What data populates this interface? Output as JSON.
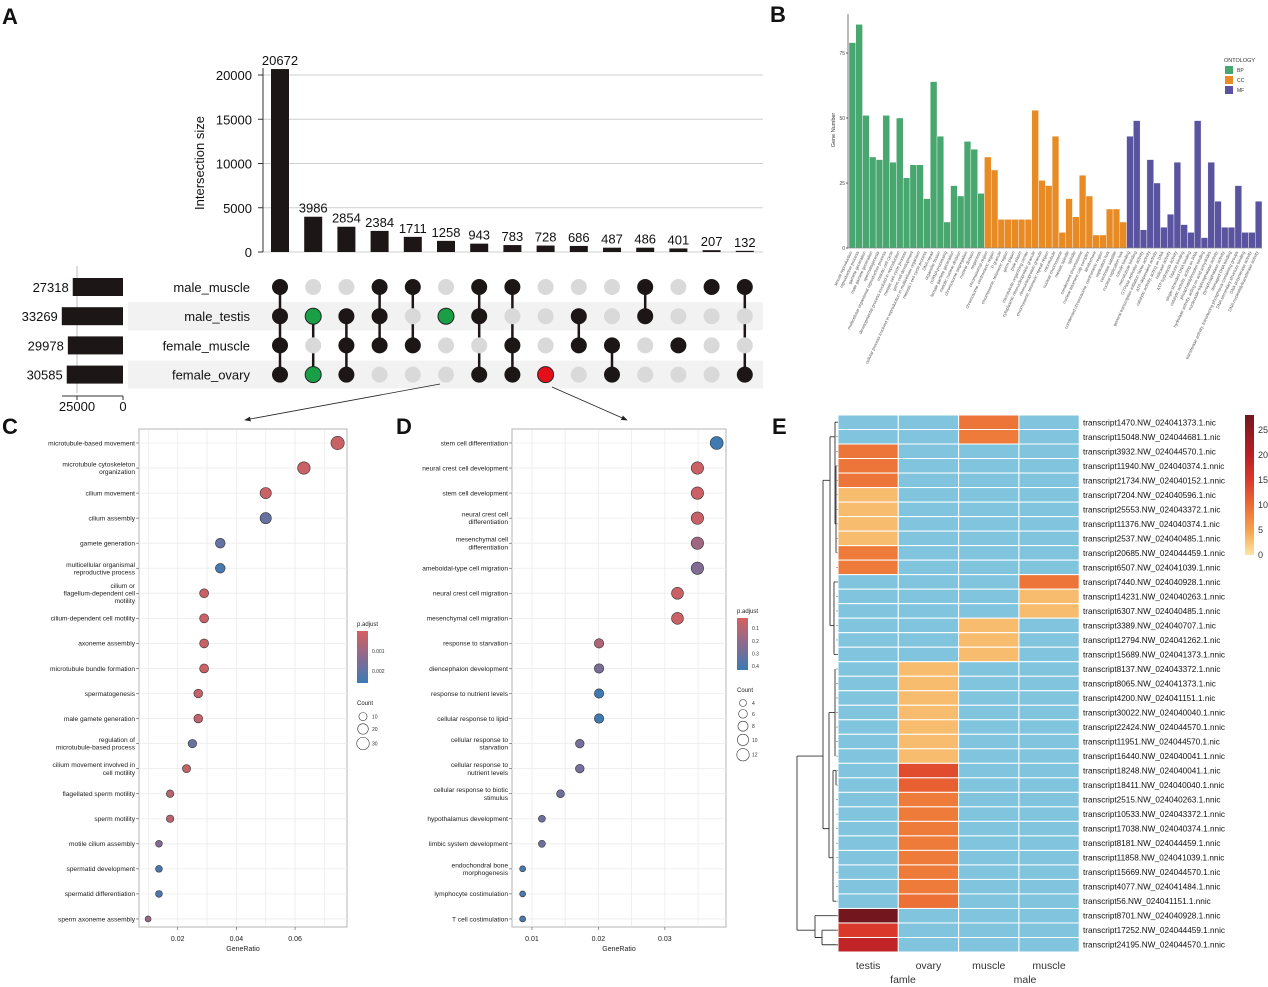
{
  "panel_labels": [
    "A",
    "B",
    "C",
    "D",
    "E"
  ],
  "chart_data": [
    {
      "type": "upset",
      "ylabel": "Intersection size",
      "ylim": [
        0,
        22000
      ],
      "yticks": [
        0,
        5000,
        10000,
        15000,
        20000
      ],
      "grid": true,
      "sets": [
        "male_muscle",
        "male_testis",
        "female_muscle",
        "female_ovary"
      ],
      "set_sizes": [
        27318,
        33269,
        29978,
        30585
      ],
      "set_size_ticks": [
        25000,
        0
      ],
      "intersections": [
        {
          "size": 20672,
          "members": [
            1,
            1,
            1,
            1
          ],
          "highlight": null
        },
        {
          "size": 3986,
          "members": [
            0,
            1,
            0,
            1
          ],
          "highlight": "green"
        },
        {
          "size": 2854,
          "members": [
            0,
            1,
            1,
            1
          ],
          "highlight": null
        },
        {
          "size": 2384,
          "members": [
            1,
            1,
            1,
            0
          ],
          "highlight": null
        },
        {
          "size": 1711,
          "members": [
            1,
            0,
            1,
            0
          ],
          "highlight": null
        },
        {
          "size": 1258,
          "members": [
            0,
            1,
            0,
            0
          ],
          "highlight": "green"
        },
        {
          "size": 943,
          "members": [
            1,
            1,
            0,
            1
          ],
          "highlight": null
        },
        {
          "size": 783,
          "members": [
            1,
            0,
            1,
            1
          ],
          "highlight": null
        },
        {
          "size": 728,
          "members": [
            0,
            0,
            0,
            1
          ],
          "highlight": "red"
        },
        {
          "size": 686,
          "members": [
            0,
            1,
            1,
            0
          ],
          "highlight": null
        },
        {
          "size": 487,
          "members": [
            0,
            0,
            1,
            1
          ],
          "highlight": null
        },
        {
          "size": 486,
          "members": [
            1,
            1,
            0,
            0
          ],
          "highlight": null
        },
        {
          "size": 401,
          "members": [
            0,
            0,
            1,
            0
          ],
          "highlight": null
        },
        {
          "size": 207,
          "members": [
            1,
            0,
            0,
            0
          ],
          "highlight": null
        },
        {
          "size": 132,
          "members": [
            1,
            0,
            0,
            1
          ],
          "highlight": null
        }
      ],
      "colors": {
        "bar": "#1c1616",
        "dot_active": "#1c1616",
        "dot_inactive": "#d9d9d9",
        "green": "#1a9e46",
        "red": "#e3101b",
        "row_shade": "#f2f2f2"
      }
    },
    {
      "type": "bar",
      "ylabel": "Gene Number",
      "yticks": [
        0,
        25,
        50,
        75
      ],
      "ylim": [
        0,
        90
      ],
      "legend_title": "ONTOLOGY",
      "legend_position": "right",
      "series": [
        {
          "name": "BP",
          "color": "#48a66f",
          "categories": [
            "sexual reproduction",
            "reproductive process",
            "gamete generation",
            "male gamete generation",
            "spermatogenesis",
            "multicellular organismal reproductive process",
            "meiotic cell cycle",
            "developmental process involved in reproduction",
            "meiotic cell cycle process",
            "germ cell development",
            "cellular process involved in reproduction in multicellular organism",
            "meiosis I cell cycle process",
            "DNA repair",
            "organelle fission",
            "ncRNA processing",
            "female gamete generation",
            "meiotic nuclear division",
            "chromosome segregation",
            "nuclear division",
            "oogenesis"
          ],
          "values": [
            79,
            86,
            51,
            35,
            34,
            51,
            33,
            50,
            27,
            32,
            32,
            19,
            64,
            43,
            10,
            24,
            20,
            41,
            38,
            21
          ]
        },
        {
          "name": "CC",
          "color": "#e88b25",
          "categories": [
            "chromosomal region",
            "chromosome, centromeric region",
            "P granule",
            "chromosome, telomeric region",
            "germ plasm",
            "pole plasm",
            "microtubule organizing center",
            "cytoplasmic ribonucleoprotein granule",
            "ribonucleoprotein granule",
            "chromosome, telomeric repeat region",
            "microtubule",
            "nuclear chromosome",
            "meiotic spindle",
            "spindle",
            "condensed chromosome",
            "nuclear telomere cap complex",
            "kinetochore",
            "condensed chromosome, centromeric region",
            "replication fork",
            "centriolar satellite",
            "nuclear replication fork"
          ],
          "values": [
            35,
            30,
            11,
            11,
            11,
            11,
            11,
            53,
            26,
            24,
            43,
            6,
            19,
            12,
            28,
            20,
            5,
            5,
            15,
            15,
            10
          ]
        },
        {
          "name": "MF",
          "color": "#5a54a0",
          "categories": [
            "tubulin binding",
            "microtubule binding",
            "GTPase activator activity",
            "general transcription initiation factor activity",
            "ATP-dependent activity",
            "catalytic activity, acting on DNA",
            "helicase activity",
            "ATP hydrolysis activity",
            "histone binding",
            "single-stranded DNA binding",
            "catalytic activity, acting on RNA",
            "phosphatidylinositol binding",
            "hydrolase activity, acting on acid anhydrides",
            "nucleoside-triphosphatase activity",
            "pyrophosphatase activity",
            "damaged DNA binding",
            "transferase activity, transferring phosphorus-containing groups",
            "DNA secondary structure binding",
            "DNA polymerase activity",
            "DNA nucleotidyltransferase activity"
          ],
          "values": [
            43,
            49,
            7,
            34,
            25,
            8,
            13,
            33,
            9,
            6,
            49,
            4,
            33,
            18,
            8,
            8,
            24,
            6,
            6,
            18
          ]
        }
      ]
    },
    {
      "type": "scatter",
      "subtype": "dotplot",
      "xlabel": "GeneRatio",
      "xticks": [
        0.02,
        0.04,
        0.06
      ],
      "xlim": [
        0.0068,
        0.0777
      ],
      "grid": true,
      "terms": [
        "microtubule-based movement",
        "microtubule cytoskeleton\norganization",
        "cilium movement",
        "cilium assembly",
        "gamete generation",
        "multicellular organismal\nreproductive process",
        "cilium or\nflagellum-dependent cell\nmotility",
        "cilium-dependent cell motility",
        "axoneme assembly",
        "microtubule bundle formation",
        "spermatogenesis",
        "male gamete generation",
        "regulation of\nmicrotubule-based process",
        "cilium movement involved in\ncell motility",
        "flagellated sperm motility",
        "sperm motility",
        "motile cilium assembly",
        "spermatid development",
        "spermatid differentiation",
        "sperm axoneme assembly"
      ],
      "gene_ratio": [
        0.0745,
        0.063,
        0.05,
        0.05,
        0.0345,
        0.0345,
        0.029,
        0.029,
        0.029,
        0.029,
        0.027,
        0.027,
        0.025,
        0.023,
        0.0174,
        0.0174,
        0.0136,
        0.0136,
        0.0136,
        0.0099
      ],
      "count": [
        35,
        30,
        23,
        23,
        16,
        16,
        13,
        13,
        13,
        13,
        12,
        12,
        11,
        10,
        8,
        8,
        6,
        6,
        6,
        4
      ],
      "p_adjust": [
        0.0002,
        0.0002,
        0.0002,
        0.0019,
        0.0019,
        0.0024,
        0.0002,
        0.0002,
        0.0002,
        0.0002,
        0.0003,
        0.0003,
        0.0018,
        0.0003,
        0.0005,
        0.0005,
        0.0014,
        0.0023,
        0.0023,
        0.0011
      ],
      "color_legend_title": "p.adjust",
      "color_range": [
        0,
        0.0026
      ],
      "color_ticks": [
        "0.001",
        "0.002"
      ],
      "size_legend_title": "Count",
      "size_ticks": [
        10,
        20,
        30
      ]
    },
    {
      "type": "scatter",
      "subtype": "dotplot",
      "xlabel": "GeneRatio",
      "xticks": [
        0.01,
        0.02,
        0.03
      ],
      "xlim": [
        0.007,
        0.0392
      ],
      "grid": true,
      "terms": [
        "stem cell differentiation",
        "neural crest cell development",
        "stem cell development",
        "neural crest cell\ndifferentiation",
        "mesenchymal cell\ndifferentiation",
        "ameboidal-type cell migration",
        "neural crest cell migration",
        "mesenchymal cell migration",
        "response to starvation",
        "diencephalon development",
        "response to nutrient levels",
        "cellular response to lipid",
        "cellular response to\nstarvation",
        "cellular response to\nnutrient levels",
        "cellular response to biotic\nstimulus",
        "hypothalamus development",
        "limbic system development",
        "endochondral bone\nmorphogenesis",
        "lymphocyte costimulation",
        "T cell costimulation"
      ],
      "gene_ratio": [
        0.0378,
        0.0349,
        0.0349,
        0.0349,
        0.0349,
        0.0349,
        0.0319,
        0.0319,
        0.0201,
        0.0201,
        0.0201,
        0.0201,
        0.0172,
        0.0172,
        0.0143,
        0.0115,
        0.0115,
        0.0086,
        0.0086,
        0.0086
      ],
      "count": [
        13,
        12,
        12,
        12,
        12,
        12,
        11,
        11,
        7,
        7,
        7,
        7,
        6,
        6,
        5,
        4,
        4,
        3,
        3,
        3
      ],
      "p_adjust": [
        0.42,
        0.05,
        0.05,
        0.06,
        0.17,
        0.25,
        0.05,
        0.05,
        0.12,
        0.27,
        0.42,
        0.42,
        0.28,
        0.28,
        0.3,
        0.3,
        0.3,
        0.38,
        0.38,
        0.38
      ],
      "color_legend_title": "p.adjust",
      "color_range": [
        0.02,
        0.43
      ],
      "color_ticks": [
        "0.1",
        "0.2",
        "0.3",
        "0.4"
      ],
      "size_legend_title": "Count",
      "size_ticks": [
        4,
        6,
        8,
        10,
        12
      ]
    },
    {
      "type": "heatmap",
      "columns": [
        "testis",
        "ovary",
        "muscle",
        "muscle"
      ],
      "column_groups": [
        "famle",
        "male"
      ],
      "rows": [
        "transcript1470.NW_024041373.1.nic",
        "transcript15048.NW_024044681.1.nic",
        "transcript3932.NW_024044570.1.nic",
        "transcript11940.NW_024040374.1.nnic",
        "transcript21734.NW_024040152.1.nnic",
        "transcript7204.NW_024040596.1.nic",
        "transcript25553.NW_024043372.1.nic",
        "transcript11376.NW_024040374.1.nic",
        "transcript2537.NW_024040485.1.nnic",
        "transcript20685.NW_024044459.1.nnic",
        "transcript6507.NW_024041039.1.nnic",
        "transcript7440.NW_024040928.1.nnic",
        "transcript14231.NW_024040263.1.nnic",
        "transcript6307.NW_024040485.1.nnic",
        "transcript3389.NW_024040707.1.nic",
        "transcript12794.NW_024041262.1.nic",
        "transcript15689.NW_024041373.1.nnic",
        "transcript8137.NW_024043372.1.nnic",
        "transcript8065.NW_024041373.1.nic",
        "transcript4200.NW_024041151.1.nic",
        "transcript30022.NW_024040040.1.nnic",
        "transcript22424.NW_024044570.1.nnic",
        "transcript11951.NW_024044570.1.nic",
        "transcript16440.NW_024040041.1.nnic",
        "transcript18248.NW_024040041.1.nic",
        "transcript18411.NW_024040040.1.nnic",
        "transcript2515.NW_024040263.1.nnic",
        "transcript10533.NW_024043372.1.nnic",
        "transcript17038.NW_024040374.1.nnic",
        "transcript8181.NW_024044459.1.nnic",
        "transcript11858.NW_024041039.1.nnic",
        "transcript15669.NW_024044570.1.nic",
        "transcript4077.NW_024041484.1.nnic",
        "transcript56.NW_024041151.1.nnic",
        "transcript8701.NW_024040928.1.nnic",
        "transcript17252.NW_024044459.1.nnic",
        "transcript24195.NW_024044570.1.nnic"
      ],
      "values": [
        [
          null,
          null,
          9,
          null
        ],
        [
          null,
          null,
          8.5,
          null
        ],
        [
          9,
          null,
          null,
          null
        ],
        [
          9,
          null,
          null,
          null
        ],
        [
          9,
          null,
          null,
          null
        ],
        [
          3,
          null,
          null,
          null
        ],
        [
          3,
          null,
          null,
          null
        ],
        [
          3,
          null,
          null,
          null
        ],
        [
          3,
          null,
          null,
          null
        ],
        [
          8.5,
          null,
          null,
          null
        ],
        [
          8.5,
          null,
          null,
          null
        ],
        [
          null,
          null,
          null,
          9
        ],
        [
          null,
          null,
          null,
          3
        ],
        [
          null,
          null,
          null,
          3
        ],
        [
          null,
          null,
          3,
          null
        ],
        [
          null,
          null,
          3,
          null
        ],
        [
          null,
          null,
          3,
          null
        ],
        [
          null,
          3,
          null,
          null
        ],
        [
          null,
          3,
          null,
          null
        ],
        [
          null,
          3,
          null,
          null
        ],
        [
          null,
          3,
          null,
          null
        ],
        [
          null,
          3,
          null,
          null
        ],
        [
          null,
          3,
          null,
          null
        ],
        [
          null,
          3,
          null,
          null
        ],
        [
          null,
          13,
          null,
          null
        ],
        [
          null,
          11,
          null,
          null
        ],
        [
          null,
          8.5,
          null,
          null
        ],
        [
          null,
          8.5,
          null,
          null
        ],
        [
          null,
          8.5,
          null,
          null
        ],
        [
          null,
          8.5,
          null,
          null
        ],
        [
          null,
          8.5,
          null,
          null
        ],
        [
          null,
          8.5,
          null,
          null
        ],
        [
          null,
          8.5,
          null,
          null
        ],
        [
          null,
          9.5,
          null,
          null
        ],
        [
          28,
          null,
          null,
          null
        ],
        [
          15,
          null,
          null,
          null
        ],
        [
          19,
          null,
          null,
          null
        ]
      ],
      "na_color": "#80c4de",
      "color_ticks": [
        0,
        5,
        10,
        15,
        20,
        25
      ],
      "color_range": [
        0,
        28
      ]
    }
  ]
}
